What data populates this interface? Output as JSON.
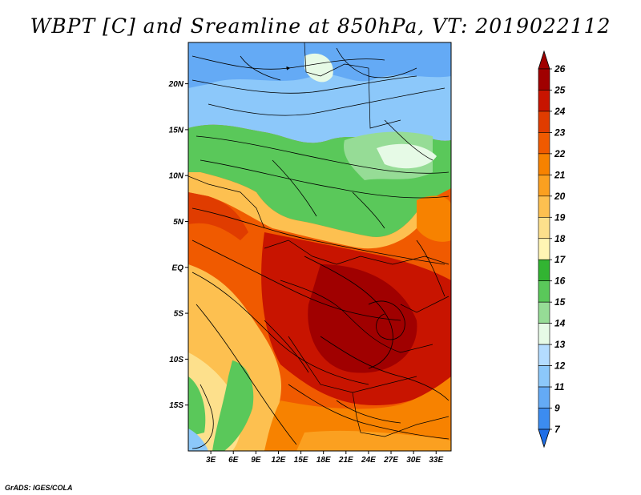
{
  "title": "WBPT [C] and Sreamline at 850hPa, VT: 2019022112",
  "credit": "GrADS: IGES/COLA",
  "map": {
    "lon_range": [
      0,
      35
    ],
    "lat_range": [
      -20,
      24.5
    ],
    "lat_ticks": [
      {
        "value": 20,
        "label": "20N"
      },
      {
        "value": 15,
        "label": "15N"
      },
      {
        "value": 10,
        "label": "10N"
      },
      {
        "value": 5,
        "label": "5N"
      },
      {
        "value": 0,
        "label": "EQ"
      },
      {
        "value": -5,
        "label": "5S"
      },
      {
        "value": -10,
        "label": "10S"
      },
      {
        "value": -15,
        "label": "15S"
      }
    ],
    "lon_ticks": [
      {
        "value": 3,
        "label": "3E"
      },
      {
        "value": 6,
        "label": "6E"
      },
      {
        "value": 9,
        "label": "9E"
      },
      {
        "value": 12,
        "label": "12E"
      },
      {
        "value": 15,
        "label": "15E"
      },
      {
        "value": 18,
        "label": "18E"
      },
      {
        "value": 21,
        "label": "21E"
      },
      {
        "value": 24,
        "label": "24E"
      },
      {
        "value": 27,
        "label": "27E"
      },
      {
        "value": 30,
        "label": "30E"
      },
      {
        "value": 33,
        "label": "33E"
      }
    ]
  },
  "colorbar": {
    "levels": [
      {
        "label": "26",
        "color": "#a00000"
      },
      {
        "label": "25",
        "color": "#c81400"
      },
      {
        "label": "24",
        "color": "#e03c00"
      },
      {
        "label": "23",
        "color": "#f05a00"
      },
      {
        "label": "22",
        "color": "#f78200"
      },
      {
        "label": "21",
        "color": "#fba020"
      },
      {
        "label": "20",
        "color": "#fdc050"
      },
      {
        "label": "19",
        "color": "#fde08c"
      },
      {
        "label": "18",
        "color": "#fff5b4"
      },
      {
        "label": "17",
        "color": "#32b432"
      },
      {
        "label": "16",
        "color": "#5ac85a"
      },
      {
        "label": "15",
        "color": "#96dc96"
      },
      {
        "label": "14",
        "color": "#e6fae6"
      },
      {
        "label": "13",
        "color": "#b4dcff"
      },
      {
        "label": "12",
        "color": "#8cc8fa"
      },
      {
        "label": "11",
        "color": "#64aaf5"
      },
      {
        "label": "9",
        "color": "#3c8cf0"
      },
      {
        "label": "7",
        "color": "#1e6ee6"
      }
    ],
    "top_color": "#a00000",
    "bottom_color": "#1e6ee6"
  }
}
